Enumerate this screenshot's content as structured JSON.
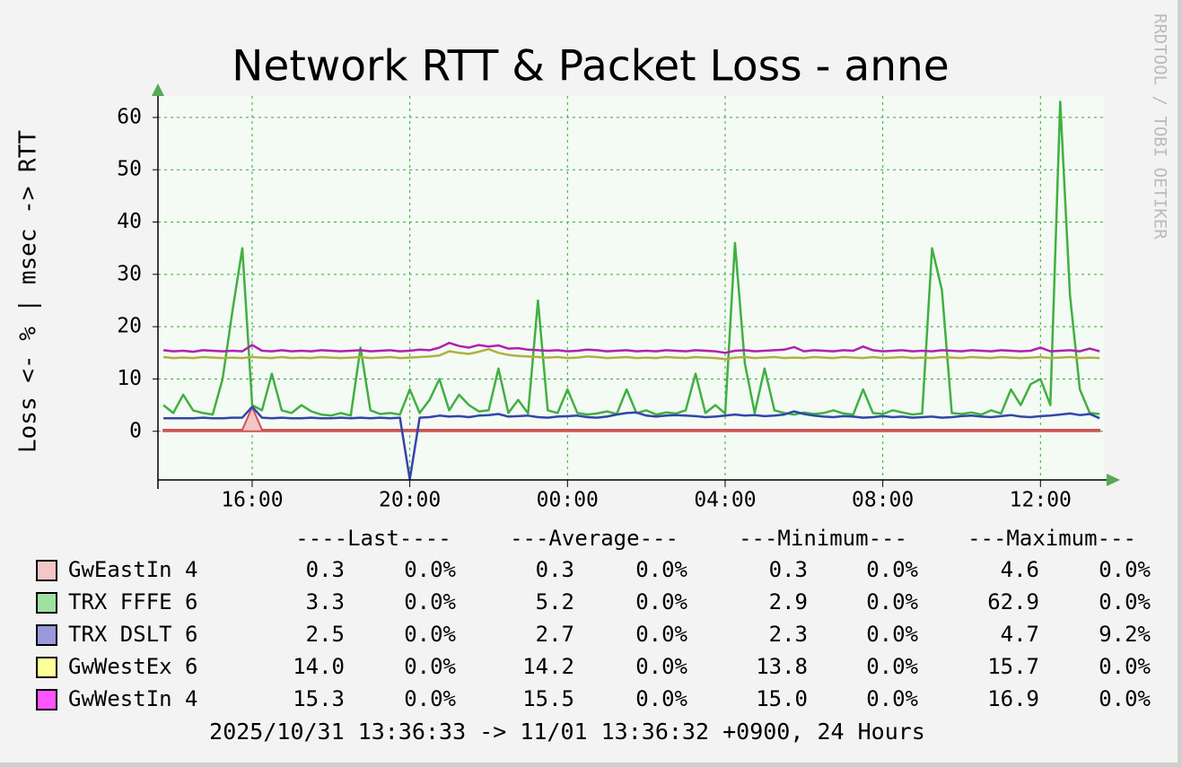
{
  "chart_data": {
    "type": "line",
    "title": "Network RTT & Packet Loss - anne",
    "y_label": "Loss <- % | msec -> RTT",
    "watermark": "RRDTOOL / TOBI OETIKER",
    "footer": "2025/10/31 13:36:33 -> 11/01 13:36:32 +0900, 24 Hours",
    "xlim": [
      13.61,
      37.61
    ],
    "xticks": [
      {
        "value": 16,
        "label": "16:00"
      },
      {
        "value": 20,
        "label": "20:00"
      },
      {
        "value": 24,
        "label": "00:00"
      },
      {
        "value": 28,
        "label": "04:00"
      },
      {
        "value": 32,
        "label": "08:00"
      },
      {
        "value": 36,
        "label": "12:00"
      }
    ],
    "ylim": [
      -9.3,
      64.1
    ],
    "yticks": [
      0,
      10,
      20,
      30,
      40,
      50,
      60
    ],
    "grid": true,
    "x": [
      13.75,
      14,
      14.25,
      14.5,
      14.75,
      15,
      15.25,
      15.5,
      15.75,
      16,
      16.25,
      16.5,
      16.75,
      17,
      17.25,
      17.5,
      17.75,
      18,
      18.25,
      18.5,
      18.75,
      19,
      19.25,
      19.5,
      19.75,
      20,
      20.25,
      20.5,
      20.75,
      21,
      21.25,
      21.5,
      21.75,
      22,
      22.25,
      22.5,
      22.75,
      23,
      23.25,
      23.5,
      23.75,
      24,
      24.25,
      24.5,
      24.75,
      25,
      25.25,
      25.5,
      25.75,
      26,
      26.25,
      26.5,
      26.75,
      27,
      27.25,
      27.5,
      27.75,
      28,
      28.25,
      28.5,
      28.75,
      29,
      29.25,
      29.5,
      29.75,
      30,
      30.25,
      30.5,
      30.75,
      31,
      31.25,
      31.5,
      31.75,
      32,
      32.25,
      32.5,
      32.75,
      33,
      33.25,
      33.5,
      33.75,
      34,
      34.25,
      34.5,
      34.75,
      35,
      35.25,
      35.5,
      35.75,
      36,
      36.25,
      36.5,
      36.75,
      37,
      37.25,
      37.5
    ],
    "series": [
      {
        "name": "GwEastIn 4",
        "color": "#cc5555",
        "swatch": "#f4c6c6",
        "style": "area",
        "values": [
          0.3,
          0.3,
          0.3,
          0.3,
          0.3,
          0.3,
          0.3,
          0.3,
          0.3,
          4.6,
          0.3,
          0.3,
          0.3,
          0.3,
          0.3,
          0.3,
          0.3,
          0.3,
          0.3,
          0.3,
          0.3,
          0.3,
          0.3,
          0.3,
          0.3,
          0.3,
          0.3,
          0.3,
          0.3,
          0.3,
          0.3,
          0.3,
          0.3,
          0.3,
          0.3,
          0.3,
          0.3,
          0.3,
          0.3,
          0.3,
          0.3,
          0.3,
          0.3,
          0.3,
          0.3,
          0.3,
          0.3,
          0.3,
          0.3,
          0.3,
          0.3,
          0.3,
          0.3,
          0.3,
          0.3,
          0.3,
          0.3,
          0.3,
          0.3,
          0.3,
          0.3,
          0.3,
          0.3,
          0.3,
          0.3,
          0.3,
          0.3,
          0.3,
          0.3,
          0.3,
          0.3,
          0.3,
          0.3,
          0.3,
          0.3,
          0.3,
          0.3,
          0.3,
          0.3,
          0.3,
          0.3,
          0.3,
          0.3,
          0.3,
          0.3,
          0.3,
          0.3,
          0.3,
          0.3,
          0.3,
          0.3,
          0.3,
          0.3,
          0.3,
          0.3,
          0.3
        ]
      },
      {
        "name": "TRX FFFE 6",
        "color": "#40b040",
        "swatch": "#a0e0a0",
        "style": "line",
        "values": [
          5,
          3.5,
          7,
          4,
          3.5,
          3.2,
          10,
          23,
          35,
          5,
          4,
          11,
          4,
          3.5,
          5,
          3.8,
          3.2,
          3,
          3.5,
          3,
          16,
          4,
          3.3,
          3.5,
          3.2,
          8,
          3.5,
          6,
          10,
          4,
          7,
          5,
          3.8,
          4,
          12,
          3.5,
          6,
          3.4,
          25,
          4,
          3.5,
          8,
          3.5,
          3.2,
          3.4,
          3.8,
          3.3,
          8,
          3.5,
          4,
          3.2,
          3.6,
          3.4,
          4,
          11,
          3.5,
          5,
          3.4,
          36,
          13,
          3.5,
          12,
          4,
          3.5,
          3.2,
          3.6,
          3.3,
          3.5,
          4,
          3.4,
          3.2,
          8,
          3.5,
          3.3,
          4,
          3.6,
          3.2,
          3.4,
          35,
          27,
          3.5,
          3.3,
          3.6,
          3.2,
          4,
          3.4,
          8,
          5,
          9,
          10,
          5,
          63,
          26,
          8,
          3.5,
          3.3
        ]
      },
      {
        "name": "TRX DSLT 6",
        "color": "#3344aa",
        "swatch": "#9999dd",
        "style": "line",
        "values": [
          2.5,
          2.5,
          2.5,
          2.5,
          2.6,
          2.5,
          2.5,
          2.6,
          2.6,
          4.7,
          2.6,
          2.5,
          2.6,
          2.5,
          2.5,
          2.6,
          2.5,
          2.5,
          2.6,
          2.5,
          2.6,
          2.5,
          2.6,
          2.5,
          2.6,
          -9.2,
          2.6,
          2.7,
          3.0,
          2.8,
          2.9,
          2.7,
          3.0,
          3.1,
          3.3,
          2.8,
          2.9,
          3.0,
          2.7,
          2.6,
          2.8,
          2.9,
          3.0,
          2.7,
          2.6,
          2.8,
          3.2,
          3.5,
          3.6,
          3.0,
          2.8,
          3.0,
          3.1,
          3.0,
          2.9,
          2.7,
          2.8,
          3.0,
          3.2,
          3.0,
          3.1,
          2.9,
          3.0,
          3.2,
          3.8,
          3.3,
          3.0,
          2.8,
          2.7,
          2.9,
          2.8,
          2.6,
          2.7,
          2.9,
          2.7,
          2.8,
          2.6,
          2.7,
          2.8,
          2.6,
          2.7,
          2.9,
          3.0,
          2.8,
          2.7,
          2.9,
          3.1,
          2.8,
          2.7,
          2.9,
          3.0,
          3.2,
          3.4,
          3.1,
          3.3,
          2.5
        ]
      },
      {
        "name": "GwWestEx 6",
        "color": "#b0b040",
        "swatch": "#ffff99",
        "style": "line",
        "values": [
          14.2,
          14.0,
          14.1,
          14.0,
          14.2,
          14.1,
          14.0,
          14.1,
          14.0,
          14.2,
          14.1,
          14.0,
          14.2,
          14.0,
          14.1,
          14.0,
          14.2,
          14.1,
          14.0,
          14.1,
          14.2,
          14.0,
          14.1,
          14.2,
          14.0,
          14.1,
          14.2,
          14.3,
          14.5,
          15.3,
          15.0,
          14.8,
          15.2,
          15.7,
          15.0,
          14.6,
          14.4,
          14.3,
          14.2,
          14.1,
          14.2,
          14.0,
          14.1,
          14.3,
          14.2,
          14.0,
          14.1,
          14.2,
          14.0,
          14.1,
          14.0,
          14.2,
          14.1,
          14.0,
          14.2,
          14.1,
          14.0,
          13.8,
          14.1,
          14.2,
          14.0,
          14.1,
          14.2,
          14.0,
          14.1,
          14.0,
          14.2,
          14.1,
          14.0,
          14.2,
          14.1,
          14.0,
          14.2,
          14.0,
          14.1,
          14.2,
          14.0,
          14.1,
          14.0,
          14.2,
          14.1,
          14.0,
          14.2,
          14.1,
          14.0,
          14.2,
          14.1,
          14.0,
          14.1,
          14.2,
          14.0,
          14.1,
          14.2,
          14.0,
          14.1,
          14.0
        ]
      },
      {
        "name": "GwWestIn 4",
        "color": "#b020b0",
        "swatch": "#ff55ff",
        "style": "line",
        "values": [
          15.5,
          15.3,
          15.4,
          15.2,
          15.5,
          15.4,
          15.3,
          15.4,
          15.3,
          16.5,
          15.4,
          15.3,
          15.5,
          15.3,
          15.4,
          15.3,
          15.5,
          15.4,
          15.3,
          15.4,
          15.5,
          15.3,
          15.4,
          15.5,
          15.3,
          15.4,
          15.6,
          15.5,
          16.0,
          16.9,
          16.3,
          16.0,
          16.5,
          16.2,
          16.4,
          15.8,
          15.9,
          15.6,
          15.5,
          15.4,
          15.5,
          15.3,
          15.4,
          15.6,
          15.5,
          15.3,
          15.4,
          15.5,
          15.3,
          15.4,
          15.3,
          15.5,
          15.4,
          15.3,
          15.5,
          15.4,
          15.3,
          15.0,
          15.4,
          15.5,
          15.3,
          15.4,
          15.5,
          15.6,
          16.1,
          15.3,
          15.5,
          15.4,
          15.3,
          15.5,
          15.4,
          16.2,
          15.5,
          15.3,
          15.4,
          15.5,
          15.3,
          15.4,
          15.3,
          15.5,
          15.4,
          15.3,
          15.5,
          15.4,
          15.3,
          15.5,
          15.4,
          15.3,
          15.4,
          16.0,
          15.3,
          15.4,
          15.5,
          15.3,
          15.8,
          15.3
        ]
      }
    ],
    "stats_headers": [
      "----Last----",
      "---Average---",
      "---Minimum---",
      "---Maximum---"
    ],
    "stats": [
      [
        "0.3",
        "0.0%",
        "0.3",
        "0.0%",
        "0.3",
        "0.0%",
        "4.6",
        "0.0%"
      ],
      [
        "3.3",
        "0.0%",
        "5.2",
        "0.0%",
        "2.9",
        "0.0%",
        "62.9",
        "0.0%"
      ],
      [
        "2.5",
        "0.0%",
        "2.7",
        "0.0%",
        "2.3",
        "0.0%",
        "4.7",
        "9.2%"
      ],
      [
        "14.0",
        "0.0%",
        "14.2",
        "0.0%",
        "13.8",
        "0.0%",
        "15.7",
        "0.0%"
      ],
      [
        "15.3",
        "0.0%",
        "15.5",
        "0.0%",
        "15.0",
        "0.0%",
        "16.9",
        "0.0%"
      ]
    ]
  }
}
